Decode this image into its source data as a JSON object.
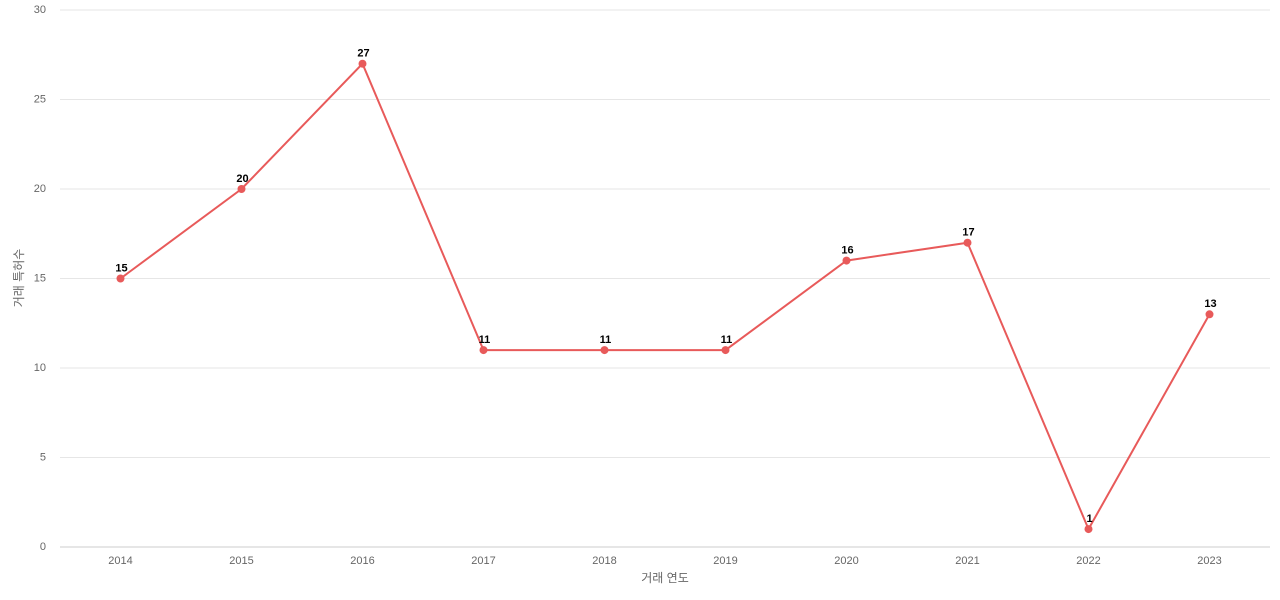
{
  "chart_data": {
    "type": "line",
    "x_label": "거래 연도",
    "y_label": "거래 특허수",
    "categories": [
      "2014",
      "2015",
      "2016",
      "2017",
      "2018",
      "2019",
      "2020",
      "2021",
      "2022",
      "2023"
    ],
    "series": [
      {
        "name": "거래 특허수",
        "color": "#e85a5a",
        "values": [
          15,
          20,
          27,
          11,
          11,
          11,
          16,
          17,
          1,
          13
        ]
      }
    ],
    "ylim": [
      0,
      30
    ],
    "yticks": [
      0,
      5,
      10,
      15,
      20,
      25,
      30
    ],
    "grid": true
  }
}
